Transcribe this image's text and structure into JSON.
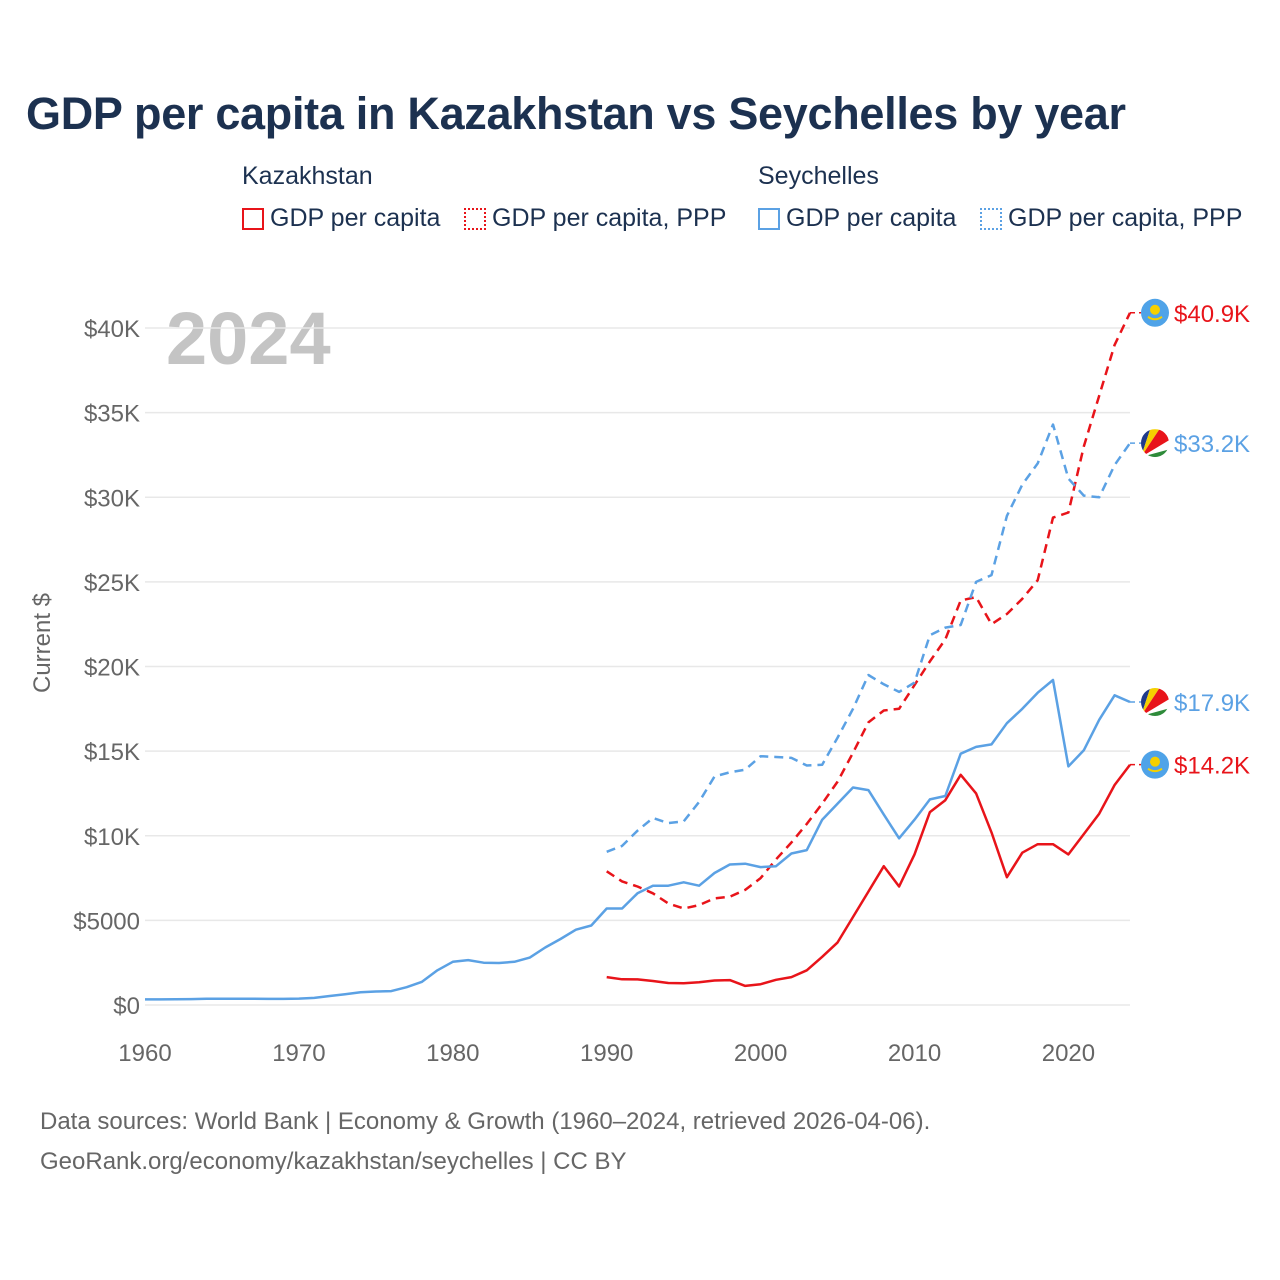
{
  "chart_data": {
    "type": "line",
    "title": "GDP per capita in Kazakhstan vs Seychelles by year",
    "ylabel": "Current $",
    "xlabel": "",
    "year_label": "2024",
    "xlim": [
      1960,
      2024
    ],
    "ylim": [
      0,
      42000
    ],
    "x_ticks": [
      1960,
      1970,
      1980,
      1990,
      2000,
      2010,
      2020
    ],
    "y_ticks": [
      {
        "value": 0,
        "label": "$0"
      },
      {
        "value": 5000,
        "label": "$5000"
      },
      {
        "value": 10000,
        "label": "$10K"
      },
      {
        "value": 15000,
        "label": "$15K"
      },
      {
        "value": 20000,
        "label": "$20K"
      },
      {
        "value": 25000,
        "label": "$25K"
      },
      {
        "value": 30000,
        "label": "$30K"
      },
      {
        "value": 35000,
        "label": "$35K"
      },
      {
        "value": 40000,
        "label": "$40K"
      }
    ],
    "legend": {
      "groups": [
        {
          "name": "Kazakhstan",
          "items": [
            "GDP per capita",
            "GDP per capita, PPP"
          ]
        },
        {
          "name": "Seychelles",
          "items": [
            "GDP per capita",
            "GDP per capita, PPP"
          ]
        }
      ]
    },
    "series": [
      {
        "name": "Kazakhstan GDP per capita",
        "country": "Kazakhstan",
        "color": "#e8141a",
        "dash": false,
        "end_label": "$14.2K",
        "x": [
          1990,
          1991,
          1992,
          1993,
          1994,
          1995,
          1996,
          1997,
          1998,
          1999,
          2000,
          2001,
          2002,
          2003,
          2004,
          2005,
          2006,
          2007,
          2008,
          2009,
          2010,
          2011,
          2012,
          2013,
          2014,
          2015,
          2016,
          2017,
          2018,
          2019,
          2020,
          2021,
          2022,
          2023,
          2024
        ],
        "values": [
          1650,
          1520,
          1510,
          1420,
          1300,
          1290,
          1350,
          1450,
          1470,
          1130,
          1230,
          1490,
          1650,
          2050,
          2850,
          3700,
          5200,
          6700,
          8200,
          7000,
          8900,
          11400,
          12100,
          13600,
          12500,
          10200,
          7550,
          9000,
          9500,
          9500,
          8900,
          10100,
          11300,
          13000,
          14200
        ]
      },
      {
        "name": "Kazakhstan GDP per capita, PPP",
        "country": "Kazakhstan",
        "color": "#e8141a",
        "dash": true,
        "end_label": "$40.9K",
        "x": [
          1990,
          1991,
          1992,
          1993,
          1994,
          1995,
          1996,
          1997,
          1998,
          1999,
          2000,
          2001,
          2002,
          2003,
          2004,
          2005,
          2006,
          2007,
          2008,
          2009,
          2010,
          2011,
          2012,
          2013,
          2014,
          2015,
          2016,
          2017,
          2018,
          2019,
          2020,
          2021,
          2022,
          2023,
          2024
        ],
        "values": [
          7900,
          7300,
          7000,
          6600,
          6000,
          5700,
          5900,
          6300,
          6400,
          6800,
          7500,
          8600,
          9600,
          10700,
          11900,
          13200,
          14900,
          16700,
          17400,
          17500,
          18900,
          20300,
          21600,
          23900,
          24100,
          22500,
          23100,
          24000,
          25100,
          28800,
          29100,
          33000,
          36000,
          39000,
          40900
        ]
      },
      {
        "name": "Seychelles GDP per capita",
        "country": "Seychelles",
        "color": "#5ba1e4",
        "dash": false,
        "end_label": "$17.9K",
        "x": [
          1960,
          1961,
          1962,
          1963,
          1964,
          1965,
          1966,
          1967,
          1968,
          1969,
          1970,
          1971,
          1972,
          1973,
          1974,
          1975,
          1976,
          1977,
          1978,
          1979,
          1980,
          1981,
          1982,
          1983,
          1984,
          1985,
          1986,
          1987,
          1988,
          1989,
          1990,
          1991,
          1992,
          1993,
          1994,
          1995,
          1996,
          1997,
          1998,
          1999,
          2000,
          2001,
          2002,
          2003,
          2004,
          2005,
          2006,
          2007,
          2008,
          2009,
          2010,
          2011,
          2012,
          2013,
          2014,
          2015,
          2016,
          2017,
          2018,
          2019,
          2020,
          2021,
          2022,
          2023,
          2024
        ],
        "values": [
          330,
          330,
          340,
          350,
          370,
          370,
          370,
          370,
          360,
          360,
          380,
          420,
          530,
          640,
          750,
          800,
          820,
          1050,
          1370,
          2050,
          2550,
          2650,
          2500,
          2480,
          2550,
          2800,
          3400,
          3900,
          4450,
          4700,
          5700,
          5700,
          6600,
          7050,
          7050,
          7250,
          7050,
          7800,
          8300,
          8350,
          8150,
          8200,
          8950,
          9150,
          10950,
          11900,
          12850,
          12700,
          11250,
          9850,
          10950,
          12150,
          12350,
          14850,
          15250,
          15400,
          16650,
          17500,
          18450,
          19200,
          14100,
          15050,
          16850,
          18300,
          17900
        ]
      },
      {
        "name": "Seychelles GDP per capita, PPP",
        "country": "Seychelles",
        "color": "#5ba1e4",
        "dash": true,
        "end_label": "$33.2K",
        "x": [
          1990,
          1991,
          1992,
          1993,
          1994,
          1995,
          1996,
          1997,
          1998,
          1999,
          2000,
          2001,
          2002,
          2003,
          2004,
          2005,
          2006,
          2007,
          2008,
          2009,
          2010,
          2011,
          2012,
          2013,
          2014,
          2015,
          2016,
          2017,
          2018,
          2019,
          2020,
          2021,
          2022,
          2023,
          2024
        ],
        "values": [
          9050,
          9400,
          10300,
          11050,
          10750,
          10850,
          12000,
          13500,
          13750,
          13900,
          14700,
          14650,
          14600,
          14150,
          14200,
          15800,
          17500,
          19500,
          18950,
          18500,
          19050,
          21850,
          22300,
          22450,
          25000,
          25400,
          28900,
          30750,
          32000,
          34300,
          31100,
          30100,
          30000,
          31900,
          33200
        ]
      }
    ]
  },
  "footer": {
    "line1": "Data sources: World Bank | Economy & Growth (1960–2024, retrieved 2026-04-06).",
    "line2": "GeoRank.org/economy/kazakhstan/seychelles | CC BY"
  }
}
